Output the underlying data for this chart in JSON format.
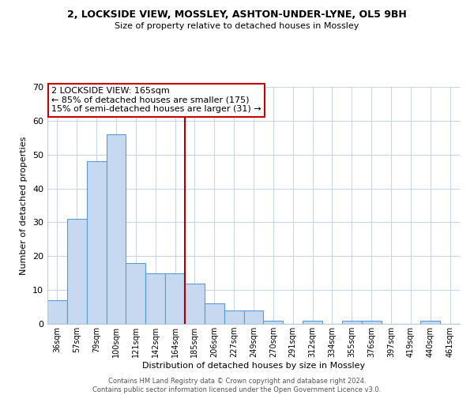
{
  "title": "2, LOCKSIDE VIEW, MOSSLEY, ASHTON-UNDER-LYNE, OL5 9BH",
  "subtitle": "Size of property relative to detached houses in Mossley",
  "xlabel": "Distribution of detached houses by size in Mossley",
  "ylabel": "Number of detached properties",
  "bin_labels": [
    "36sqm",
    "57sqm",
    "79sqm",
    "100sqm",
    "121sqm",
    "142sqm",
    "164sqm",
    "185sqm",
    "206sqm",
    "227sqm",
    "249sqm",
    "270sqm",
    "291sqm",
    "312sqm",
    "334sqm",
    "355sqm",
    "376sqm",
    "397sqm",
    "419sqm",
    "440sqm",
    "461sqm"
  ],
  "bar_heights": [
    7,
    31,
    48,
    56,
    18,
    15,
    15,
    12,
    6,
    4,
    4,
    1,
    0,
    1,
    0,
    1,
    1,
    0,
    0,
    1,
    0
  ],
  "bar_color": "#c6d9f0",
  "bar_edge_color": "#5b9bd5",
  "vline_idx": 6.5,
  "vline_color": "#aa0000",
  "annotation_title": "2 LOCKSIDE VIEW: 165sqm",
  "annotation_line1": "← 85% of detached houses are smaller (175)",
  "annotation_line2": "15% of semi-detached houses are larger (31) →",
  "annotation_box_color": "#ffffff",
  "annotation_box_edge": "#cc0000",
  "ylim": [
    0,
    70
  ],
  "yticks": [
    0,
    10,
    20,
    30,
    40,
    50,
    60,
    70
  ],
  "footer1": "Contains HM Land Registry data © Crown copyright and database right 2024.",
  "footer2": "Contains public sector information licensed under the Open Government Licence v3.0.",
  "bg_color": "#ffffff",
  "grid_color": "#c8d8e8"
}
